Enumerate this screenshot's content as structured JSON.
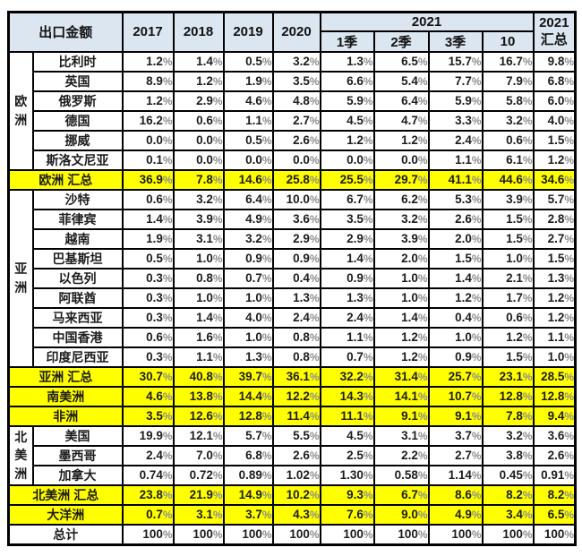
{
  "colors": {
    "header_bg": "#dce6f1",
    "highlight_yellow": "#ffff00",
    "border": "#000000",
    "text": "#1c1c1c",
    "percent_sign": "#8c8c8c"
  },
  "header": {
    "corner": "出口金额",
    "years": [
      "2017",
      "2018",
      "2019",
      "2020"
    ],
    "group_2021": "2021",
    "periods": [
      "1季",
      "2季",
      "3季",
      "10"
    ],
    "summary_top": "2021",
    "summary_bottom": "汇总"
  },
  "chart_data": {
    "type": "table",
    "title": "出口金额",
    "columns": [
      "出口金额",
      "2017",
      "2018",
      "2019",
      "2020",
      "2021 1季",
      "2021 2季",
      "2021 3季",
      "2021 10",
      "2021 汇总"
    ],
    "rows": [
      {
        "kind": "country",
        "group": "欧洲",
        "group_span": 6,
        "label": "比利时",
        "values": [
          "1.2%",
          "1.4%",
          "0.5%",
          "3.2%",
          "1.3%",
          "6.5%",
          "15.7%",
          "16.7%",
          "9.8%"
        ]
      },
      {
        "kind": "country",
        "label": "英国",
        "values": [
          "8.9%",
          "1.2%",
          "1.9%",
          "3.5%",
          "6.6%",
          "5.4%",
          "7.7%",
          "7.9%",
          "6.8%"
        ]
      },
      {
        "kind": "country",
        "label": "俄罗斯",
        "values": [
          "1.2%",
          "2.9%",
          "4.6%",
          "4.8%",
          "5.9%",
          "6.4%",
          "5.9%",
          "5.8%",
          "6.0%"
        ]
      },
      {
        "kind": "country",
        "label": "德国",
        "values": [
          "16.2%",
          "0.6%",
          "1.1%",
          "2.7%",
          "4.5%",
          "4.7%",
          "3.3%",
          "3.2%",
          "4.0%"
        ]
      },
      {
        "kind": "country",
        "label": "挪威",
        "values": [
          "0.0%",
          "0.0%",
          "0.5%",
          "2.6%",
          "1.2%",
          "1.2%",
          "2.4%",
          "0.6%",
          "1.5%"
        ]
      },
      {
        "kind": "country",
        "label": "斯洛文尼亚",
        "values": [
          "0.1%",
          "0.0%",
          "0.0%",
          "0.0%",
          "0.0%",
          "0.0%",
          "1.1%",
          "6.1%",
          "1.2%"
        ]
      },
      {
        "kind": "total",
        "label": "欧洲 汇总",
        "values": [
          "36.9%",
          "7.8%",
          "14.6%",
          "25.8%",
          "25.5%",
          "29.7%",
          "41.1%",
          "44.6%",
          "34.6%"
        ]
      },
      {
        "kind": "country",
        "group": "亚洲",
        "group_span": 9,
        "label": "沙特",
        "values": [
          "0.6%",
          "3.2%",
          "6.4%",
          "10.0%",
          "6.7%",
          "6.2%",
          "5.3%",
          "3.9%",
          "5.7%"
        ]
      },
      {
        "kind": "country",
        "label": "菲律宾",
        "values": [
          "1.4%",
          "3.9%",
          "4.9%",
          "3.6%",
          "3.5%",
          "3.2%",
          "2.6%",
          "1.5%",
          "2.8%"
        ]
      },
      {
        "kind": "country",
        "label": "越南",
        "values": [
          "1.9%",
          "3.1%",
          "3.2%",
          "2.9%",
          "2.9%",
          "3.9%",
          "2.0%",
          "1.5%",
          "2.7%"
        ]
      },
      {
        "kind": "country",
        "label": "巴基斯坦",
        "values": [
          "0.5%",
          "1.0%",
          "0.9%",
          "0.9%",
          "1.4%",
          "2.0%",
          "1.5%",
          "1.0%",
          "1.5%"
        ]
      },
      {
        "kind": "country",
        "label": "以色列",
        "values": [
          "0.3%",
          "0.8%",
          "0.7%",
          "0.4%",
          "0.9%",
          "1.0%",
          "1.4%",
          "2.1%",
          "1.3%"
        ]
      },
      {
        "kind": "country",
        "label": "阿联酋",
        "values": [
          "0.3%",
          "1.0%",
          "1.0%",
          "1.3%",
          "1.3%",
          "1.0%",
          "1.2%",
          "1.7%",
          "1.2%"
        ]
      },
      {
        "kind": "country",
        "label": "马来西亚",
        "values": [
          "0.3%",
          "1.4%",
          "4.0%",
          "2.4%",
          "2.4%",
          "1.4%",
          "0.4%",
          "0.6%",
          "1.2%"
        ]
      },
      {
        "kind": "country",
        "label": "中国香港",
        "values": [
          "0.6%",
          "1.6%",
          "1.0%",
          "0.8%",
          "1.1%",
          "1.2%",
          "1.0%",
          "1.2%",
          "1.1%"
        ]
      },
      {
        "kind": "country",
        "label": "印度尼西亚",
        "values": [
          "0.3%",
          "1.1%",
          "1.3%",
          "0.8%",
          "0.7%",
          "1.2%",
          "0.9%",
          "1.5%",
          "1.0%"
        ]
      },
      {
        "kind": "total",
        "label": "亚洲 汇总",
        "values": [
          "30.7%",
          "40.8%",
          "39.7%",
          "36.1%",
          "32.2%",
          "31.4%",
          "25.7%",
          "23.1%",
          "28.5%"
        ]
      },
      {
        "kind": "total",
        "label": "南美洲",
        "values": [
          "4.6%",
          "13.8%",
          "14.4%",
          "12.2%",
          "14.3%",
          "14.1%",
          "10.7%",
          "12.8%",
          "12.8%"
        ]
      },
      {
        "kind": "total",
        "label": "非洲",
        "values": [
          "3.5%",
          "12.6%",
          "12.8%",
          "11.4%",
          "11.1%",
          "9.1%",
          "9.1%",
          "7.8%",
          "9.4%"
        ]
      },
      {
        "kind": "country",
        "group": "北美洲",
        "group_span": 3,
        "label": "美国",
        "values": [
          "19.9%",
          "12.1%",
          "5.7%",
          "5.5%",
          "4.5%",
          "3.1%",
          "3.7%",
          "3.2%",
          "3.6%"
        ]
      },
      {
        "kind": "country",
        "label": "墨西哥",
        "values": [
          "2.4%",
          "7.0%",
          "6.8%",
          "2.6%",
          "2.5%",
          "2.2%",
          "2.7%",
          "3.8%",
          "2.6%"
        ]
      },
      {
        "kind": "country",
        "label": "加拿大",
        "values": [
          "0.74%",
          "0.72%",
          "0.89%",
          "1.02%",
          "1.30%",
          "0.58%",
          "1.14%",
          "0.45%",
          "0.91%"
        ]
      },
      {
        "kind": "total",
        "label": "北美洲 汇总",
        "values": [
          "23.8%",
          "21.9%",
          "14.9%",
          "10.2%",
          "9.3%",
          "6.7%",
          "8.6%",
          "8.2%",
          "8.2%"
        ]
      },
      {
        "kind": "total",
        "label": "大洋洲",
        "values": [
          "0.7%",
          "3.1%",
          "3.7%",
          "4.3%",
          "7.6%",
          "9.0%",
          "4.9%",
          "3.4%",
          "6.5%"
        ]
      },
      {
        "kind": "grand",
        "label": "总计",
        "values": [
          "100%",
          "100%",
          "100%",
          "100%",
          "100%",
          "100%",
          "100%",
          "100%",
          "100%"
        ]
      }
    ]
  }
}
